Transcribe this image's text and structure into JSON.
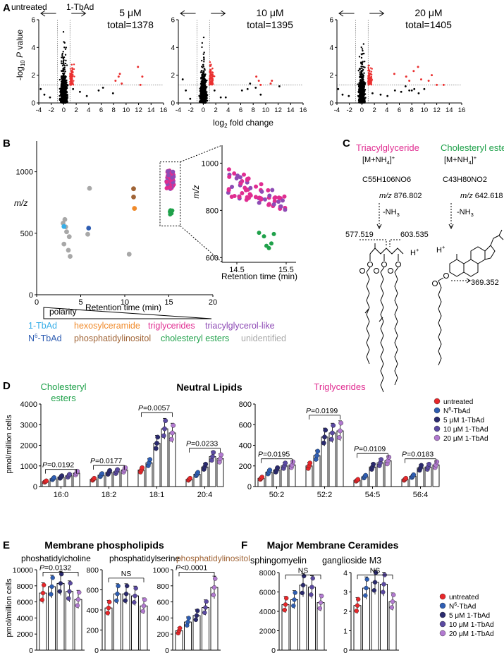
{
  "colors": {
    "untreated": "#e8272a",
    "n6": "#2e5db2",
    "tbad": "#37aee8",
    "hexosyl": "#f08a2a",
    "trig": "#e02d91",
    "tagl": "#8e4bb5",
    "pinos": "#a06436",
    "chol": "#1fa14a",
    "unid": "#a8a8a8",
    "d5": "#2a2a6e",
    "d10": "#5b4aa2",
    "d20": "#b27ad0",
    "volred": "#ea3030"
  },
  "panelA": {
    "letter": "A",
    "left_arrow": "untreated",
    "right_arrow": "1-TbAd",
    "ylabel_main": "-log",
    "ylabel_sub": "10",
    "ylabel_italic": "P",
    "ylabel_tail": " value",
    "xlabel_main": "log",
    "xlabel_sub": "2",
    "xlabel_tail": " fold change",
    "plots": [
      {
        "dose": "5 μM",
        "total": "total=1378"
      },
      {
        "dose": "10 μM",
        "total": "total=1395"
      },
      {
        "dose": "20 μM",
        "total": "total=1405"
      }
    ],
    "xticks": [
      "-4",
      "-2",
      "0",
      "2",
      "4",
      "6",
      "8",
      "10",
      "12",
      "14",
      "16"
    ],
    "yticks": [
      "0",
      "2",
      "4",
      "6"
    ],
    "red_points": [
      [
        [
          8.3,
          1.6
        ],
        [
          8.8,
          1.9
        ],
        [
          9.0,
          2.1
        ],
        [
          9.3,
          1.4
        ],
        [
          11.9,
          2.6
        ],
        [
          12.3,
          1.3
        ],
        [
          12.6,
          1.9
        ]
      ],
      [
        [
          8.5,
          1.9
        ],
        [
          8.9,
          1.6
        ],
        [
          9.2,
          1.3
        ],
        [
          10.8,
          1.4
        ],
        [
          11.0,
          1.6
        ]
      ],
      [
        [
          5.2,
          2.1
        ],
        [
          7.1,
          1.9
        ],
        [
          7.6,
          1.6
        ],
        [
          8.3,
          2.3
        ],
        [
          9.0,
          2.6
        ],
        [
          9.5,
          1.7
        ],
        [
          10.7,
          1.6
        ],
        [
          11.2,
          2.0
        ],
        [
          12.0,
          1.3
        ],
        [
          13.1,
          1.3
        ]
      ]
    ],
    "black_points": [
      [
        [
          -3.7,
          1.0
        ],
        [
          -3.1,
          0.6
        ],
        [
          -2.2,
          0.4
        ],
        [
          1.5,
          1.0
        ],
        [
          2.6,
          0.8
        ],
        [
          3.7,
          0.5
        ],
        [
          5.6,
          0.9
        ],
        [
          6.3,
          1.1
        ],
        [
          7.9,
          0.7
        ]
      ],
      [
        [
          -3.3,
          1.7
        ],
        [
          -2.8,
          0.9
        ],
        [
          -2.1,
          0.3
        ],
        [
          1.8,
          0.9
        ],
        [
          2.8,
          0.4
        ],
        [
          3.6,
          0.4
        ],
        [
          6.2,
          0.9
        ],
        [
          7.1,
          1.0
        ],
        [
          7.5,
          1.4
        ],
        [
          8.4,
          1.1
        ],
        [
          9.2,
          0.6
        ],
        [
          12.2,
          1.2
        ]
      ],
      [
        [
          -3.8,
          1.0
        ],
        [
          -3.1,
          0.6
        ],
        [
          -2.1,
          0.5
        ],
        [
          1.7,
          0.7
        ],
        [
          3.0,
          0.6
        ],
        [
          4.1,
          0.5
        ],
        [
          5.3,
          0.9
        ],
        [
          6.3,
          0.8
        ],
        [
          7.0,
          1.2
        ],
        [
          7.6,
          0.9
        ],
        [
          8.0,
          0.9
        ],
        [
          8.4,
          1.0
        ],
        [
          9.1,
          0.7
        ],
        [
          10.0,
          1.0
        ]
      ]
    ]
  },
  "panelB": {
    "letter": "B",
    "ylabel": "m/z",
    "xlabel": "Retention time (min)",
    "yticks": [
      "0",
      "500",
      "1000"
    ],
    "xticks": [
      "0",
      "5",
      "10",
      "15",
      "20"
    ],
    "inset_yticks": [
      "600",
      "800",
      "1000"
    ],
    "inset_xticks": [
      "14.5",
      "15.5"
    ],
    "inset_ylabel": "m/z",
    "inset_xlabel": "Retention time (min)",
    "polarity": "polarity",
    "legend_row1": [
      "1-TbAd",
      "hexosylceramide",
      "triglycerides",
      "triacylglycerol-like"
    ],
    "legend_row2_n": "N",
    "legend_row2_sup": "6",
    "legend_row2_rest": "-TbAd",
    "legend_row2": [
      "phosphatidylinositol",
      "cholesteryl esters",
      "unidentified"
    ],
    "gray_points": [
      [
        3.0,
        582
      ],
      [
        3.3,
        552
      ],
      [
        3.4,
        512
      ],
      [
        3.7,
        472
      ],
      [
        3.1,
        412
      ],
      [
        3.6,
        362
      ],
      [
        3.8,
        312
      ],
      [
        3.2,
        612
      ],
      [
        6.0,
        865
      ],
      [
        5.8,
        492
      ],
      [
        10.5,
        330
      ]
    ],
    "colored_points": [
      {
        "rt": 3.1,
        "mz": 555,
        "key": "tbad"
      },
      {
        "rt": 5.9,
        "mz": 542,
        "key": "n6"
      },
      {
        "rt": 11.1,
        "mz": 702,
        "key": "hexosyl"
      },
      {
        "rt": 11.0,
        "mz": 862,
        "key": "pinos"
      },
      {
        "rt": 11.0,
        "mz": 795,
        "key": "pinos"
      }
    ]
  },
  "panelC": {
    "letter": "C",
    "tg_title": "Triacylglyceride",
    "ce_title": "Cholesteryl ester",
    "adduct": "[M+NH",
    "adduct_sub": "4",
    "adduct_end": "]",
    "adduct_sup": "+",
    "tg_formula": "C55H106NO6",
    "ce_formula": "C43H80NO2",
    "mz_italic": "m/z",
    "tg_mz": " 876.802",
    "ce_mz": " 642.618",
    "loss": "-NH",
    "loss_sub": "3",
    "frag1": "577.519",
    "frag2": "603.535",
    "proton": "H",
    "proton_sup": "+",
    "frag3": "369.352"
  },
  "panelD": {
    "letter": "D",
    "title": "Neutral Lipids",
    "left_label1": "Cholesteryl",
    "left_label2": "esters",
    "right_label": "Triglycerides",
    "ylabel": "pmol/million cells",
    "left_yticks": [
      "0",
      "1000",
      "2000",
      "3000",
      "4000"
    ],
    "right_yticks": [
      "0",
      "200",
      "400",
      "600",
      "800"
    ],
    "left_groups": [
      {
        "label": "16:0",
        "means": [
          240,
          380,
          460,
          520,
          650
        ],
        "p": "=0.0192"
      },
      {
        "label": "18:2",
        "means": [
          350,
          550,
          680,
          720,
          800
        ],
        "p": "=0.0177"
      },
      {
        "label": "18:1",
        "means": [
          800,
          1150,
          2100,
          2800,
          2600
        ],
        "p": "=0.0057"
      },
      {
        "label": "20:4",
        "means": [
          350,
          600,
          950,
          1450,
          1350
        ],
        "p": "=0.0233"
      }
    ],
    "right_groups": [
      {
        "label": "50:2",
        "means": [
          80,
          140,
          160,
          200,
          210
        ],
        "p": "=0.0195"
      },
      {
        "label": "52:2",
        "means": [
          200,
          300,
          480,
          520,
          540
        ],
        "p": "=0.0199"
      },
      {
        "label": "54:5",
        "means": [
          60,
          95,
          190,
          230,
          250
        ],
        "p": "=0.0109"
      },
      {
        "label": "56:4",
        "means": [
          70,
          100,
          180,
          190,
          210
        ],
        "p": "=0.0183"
      }
    ],
    "p_prefix": "P"
  },
  "legend": {
    "items": [
      "untreated",
      "-TbAd",
      "5 μM 1-TbAd",
      "10 μM 1-TbAd",
      "20 μM 1-TbAd"
    ],
    "n_prefix": "N",
    "n_sup": "6"
  },
  "panelE": {
    "letter": "E",
    "title": "Membrane phospholipids",
    "ylabel": "pmol/million cells",
    "plots": [
      {
        "name": "phoshatidylcholine",
        "yticks": [
          "0",
          "2000",
          "4000",
          "6000",
          "8000",
          "10000"
        ],
        "means": [
          7100,
          7900,
          8300,
          7300,
          6300
        ],
        "stat": "=0.0132"
      },
      {
        "name": "phosphatidylserine",
        "yticks": [
          "0",
          "200",
          "400",
          "600",
          "800"
        ],
        "means": [
          420,
          560,
          560,
          540,
          440
        ],
        "stat": "NS"
      },
      {
        "name": "phosphatidylinositol",
        "yticks": [
          "0",
          "200",
          "400",
          "600",
          "800",
          "1000"
        ],
        "means": [
          240,
          350,
          430,
          530,
          780
        ],
        "stat": "<0.0001"
      }
    ]
  },
  "panelF": {
    "letter": "F",
    "title": "Major Membrane Ceramides",
    "plots": [
      {
        "name": "sphingomyelin",
        "yticks": [
          "0",
          "2000",
          "4000",
          "6000",
          "8000"
        ],
        "means": [
          4700,
          5200,
          6700,
          6500,
          4900
        ],
        "stat": "NS"
      },
      {
        "name": "ganglioside M3",
        "yticks": [
          "0",
          "1",
          "2",
          "3",
          "4"
        ],
        "means": [
          2.3,
          3.2,
          3.5,
          3.4,
          2.5
        ],
        "stat": "NS"
      }
    ]
  }
}
